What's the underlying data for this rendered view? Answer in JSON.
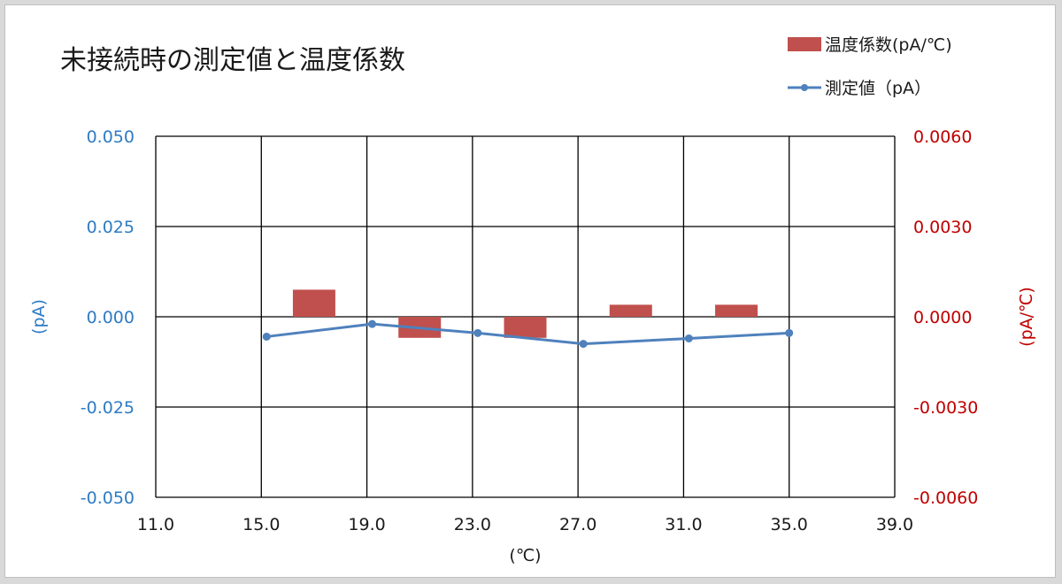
{
  "chart_data": {
    "type": "bar+line",
    "title": "未接続時の測定値と温度係数",
    "xlabel": "(℃)",
    "ylabel_left": "(pA)",
    "ylabel_right": "(pA/℃)",
    "x_ticks": [
      "11.0",
      "15.0",
      "19.0",
      "23.0",
      "27.0",
      "31.0",
      "35.0",
      "39.0"
    ],
    "xlim": [
      11,
      39
    ],
    "ylim_left": [
      -0.05,
      0.05
    ],
    "ylim_right": [
      -0.006,
      0.006
    ],
    "y_ticks_left": [
      "0.050",
      "0.025",
      "0.000",
      "-0.025",
      "-0.050"
    ],
    "y_ticks_right": [
      "0.0060",
      "0.0030",
      "0.0000",
      "-0.0030",
      "-0.0060"
    ],
    "grid": true,
    "legend_position": "top-right",
    "series": [
      {
        "name": "温度係数(pA/℃)",
        "kind": "bar",
        "axis": "right",
        "color": "#c0504d",
        "x": [
          17,
          21,
          25,
          29,
          33
        ],
        "values": [
          0.0009,
          -0.0007,
          -0.0007,
          0.0004,
          0.0004
        ]
      },
      {
        "name": "測定値（pA）",
        "kind": "line",
        "axis": "left",
        "color": "#4f81bd",
        "x": [
          15.2,
          19.2,
          23.2,
          27.2,
          31.2,
          35.0
        ],
        "values": [
          -0.0055,
          -0.002,
          -0.0045,
          -0.0075,
          -0.006,
          -0.0045
        ]
      }
    ]
  },
  "colors": {
    "left_axis": "#2e7bc4",
    "right_axis": "#c00000",
    "grid": "#000000"
  }
}
